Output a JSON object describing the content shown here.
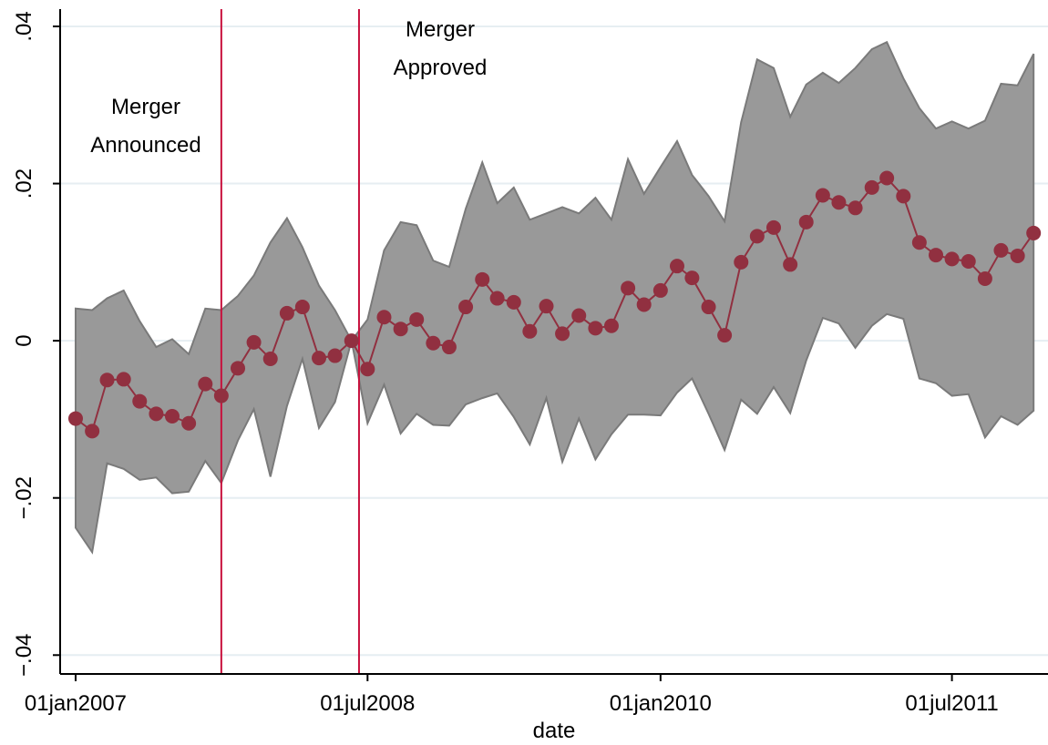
{
  "chart_data": {
    "type": "line",
    "xlabel": "date",
    "x": [
      "2007-01",
      "2007-02",
      "2007-03",
      "2007-04",
      "2007-05",
      "2007-06",
      "2007-07",
      "2007-08",
      "2007-09",
      "2007-10",
      "2007-11",
      "2007-12",
      "2008-01",
      "2008-02",
      "2008-03",
      "2008-04",
      "2008-05",
      "2008-06",
      "2008-07",
      "2008-08",
      "2008-09",
      "2008-10",
      "2008-11",
      "2008-12",
      "2009-01",
      "2009-02",
      "2009-03",
      "2009-04",
      "2009-05",
      "2009-06",
      "2009-07",
      "2009-08",
      "2009-09",
      "2009-10",
      "2009-11",
      "2009-12",
      "2010-01",
      "2010-02",
      "2010-03",
      "2010-04",
      "2010-05",
      "2010-06",
      "2010-07",
      "2010-08",
      "2010-09",
      "2010-10",
      "2010-11",
      "2010-12",
      "2011-01",
      "2011-02",
      "2011-03",
      "2011-04",
      "2011-05",
      "2011-06",
      "2011-07",
      "2011-08",
      "2011-09",
      "2011-10",
      "2011-11",
      "2011-12"
    ],
    "series": [
      {
        "color": "#913040",
        "values": [
          -0.0099,
          -0.0115,
          -0.005,
          -0.0049,
          -0.0077,
          -0.0093,
          -0.0096,
          -0.0105,
          -0.0055,
          -0.007,
          -0.0035,
          -0.0002,
          -0.0023,
          0.0035,
          0.0043,
          -0.0022,
          -0.0019,
          0,
          -0.0036,
          0.003,
          0.0015,
          0.0027,
          -0.0003,
          -0.0008,
          0.0043,
          0.0078,
          0.0054,
          0.0049,
          0.0012,
          0.0044,
          0.0009,
          0.0032,
          0.0016,
          0.0019,
          0.0067,
          0.0046,
          0.0064,
          0.0095,
          0.008,
          0.0043,
          0.0007,
          0.01,
          0.0133,
          0.0144,
          0.0097,
          0.0151,
          0.0185,
          0.0176,
          0.0169,
          0.0195,
          0.0207,
          0.0184,
          0.0125,
          0.0109,
          0.0104,
          0.0101,
          0.0079,
          0.0115,
          0.0108,
          0.0137
        ]
      }
    ],
    "band": {
      "color": "#999999",
      "edge": "#7a7a7a",
      "upper": [
        0.0041,
        0.0039,
        0.0054,
        0.0064,
        0.0025,
        -0.0008,
        0.0002,
        -0.0017,
        0.0041,
        0.0039,
        0.0057,
        0.0083,
        0.0125,
        0.0156,
        0.0119,
        0.007,
        0.0039,
        0,
        0.0027,
        0.0115,
        0.0151,
        0.0147,
        0.0102,
        0.0094,
        0.0168,
        0.0227,
        0.0175,
        0.0195,
        0.0154,
        0.0162,
        0.017,
        0.0162,
        0.0182,
        0.0154,
        0.0231,
        0.0187,
        0.0221,
        0.0254,
        0.0211,
        0.0184,
        0.0152,
        0.0278,
        0.0358,
        0.0347,
        0.0285,
        0.0326,
        0.0341,
        0.0328,
        0.0347,
        0.0371,
        0.038,
        0.0334,
        0.0296,
        0.027,
        0.0279,
        0.027,
        0.028,
        0.0327,
        0.0325,
        0.0365
      ],
      "lower": [
        -0.0238,
        -0.0269,
        -0.0156,
        -0.0163,
        -0.0177,
        -0.0174,
        -0.0194,
        -0.0192,
        -0.0153,
        -0.0181,
        -0.0127,
        -0.0087,
        -0.0173,
        -0.0083,
        -0.0023,
        -0.0111,
        -0.0078,
        0,
        -0.0105,
        -0.0056,
        -0.0118,
        -0.0093,
        -0.0107,
        -0.0108,
        -0.0081,
        -0.0073,
        -0.0067,
        -0.0097,
        -0.0132,
        -0.0073,
        -0.0154,
        -0.0099,
        -0.0151,
        -0.0119,
        -0.0094,
        -0.0094,
        -0.0095,
        -0.0066,
        -0.0048,
        -0.0093,
        -0.0139,
        -0.0075,
        -0.0093,
        -0.0059,
        -0.0092,
        -0.0025,
        0.0029,
        0.0022,
        -0.0009,
        0.0019,
        0.0034,
        0.0028,
        -0.0048,
        -0.0054,
        -0.007,
        -0.0068,
        -0.0123,
        -0.0096,
        -0.0107,
        -0.0089
      ]
    },
    "vlines": [
      {
        "x": "2007-10-01",
        "color": "#c8103c",
        "text": [
          "Merger",
          "Announced"
        ]
      },
      {
        "x": "2008-06-15",
        "color": "#c8103c",
        "text": [
          "Merger",
          "Approved"
        ]
      }
    ],
    "xlim": [
      "2006-12-03",
      "2011-12-28"
    ],
    "xticks": [
      {
        "value": "2007-01-01",
        "label": "01jan2007"
      },
      {
        "value": "2008-07-01",
        "label": "01jul2008"
      },
      {
        "value": "2010-01-01",
        "label": "01jan2010"
      },
      {
        "value": "2011-07-01",
        "label": "01jul2011"
      }
    ],
    "ylim": [
      -0.0424,
      0.0422
    ],
    "yticks": [
      {
        "value": -0.04,
        "label": "−.04"
      },
      {
        "value": -0.02,
        "label": "−.02"
      },
      0,
      {
        "value": 0.02,
        "label": ".02"
      },
      {
        "value": 0.04,
        "label": ".04"
      }
    ],
    "grid": true
  }
}
